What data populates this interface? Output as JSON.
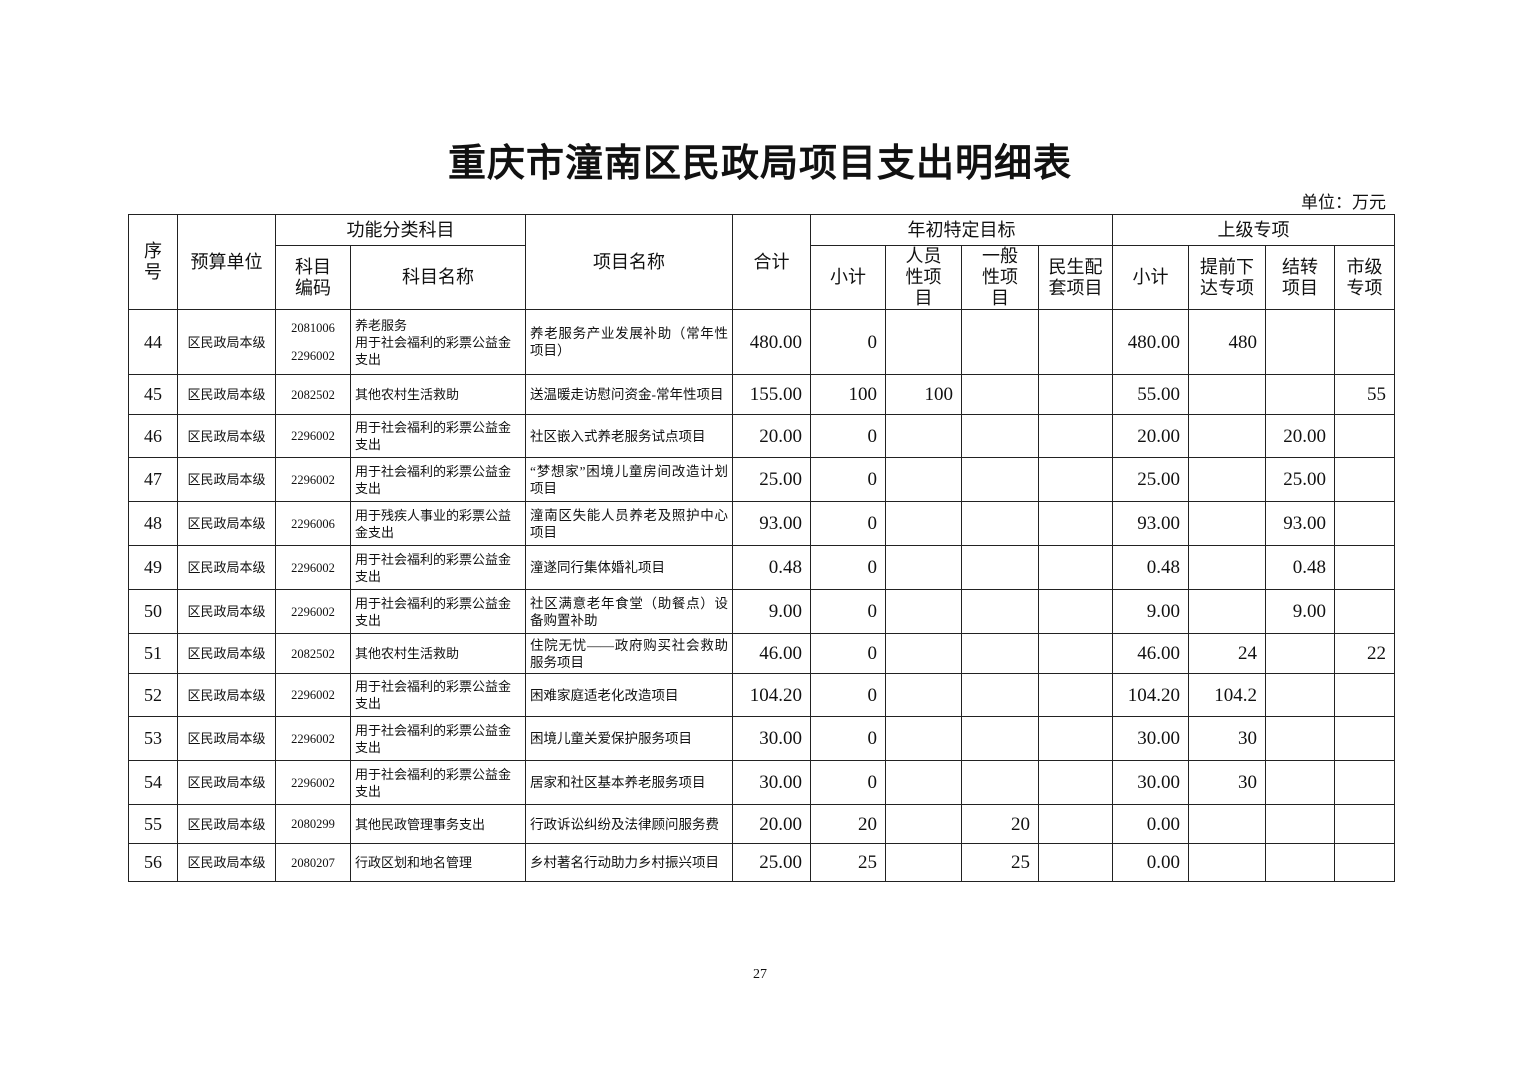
{
  "title": "重庆市潼南区民政局项目支出明细表",
  "unit": "单位：万元",
  "page_number": "27",
  "headers": {
    "seq": "序号",
    "unit": "预算单位",
    "func": "功能分类科目",
    "code": "科目编码",
    "subject": "科目名称",
    "project": "项目名称",
    "total": "合计",
    "annual": "年初特定目标",
    "a_sub": "小计",
    "a_person": "人员性项目",
    "a_general": "一般性项目",
    "a_livelihood": "民生配套项目",
    "upper": "上级专项",
    "u_sub": "小计",
    "u_advance": "提前下达专项",
    "u_carry": "结转项目",
    "u_city": "市级专项"
  },
  "rows": [
    [
      "44",
      "区民政局本级",
      "2081006\n2296002",
      "养老服务\n用于社会福利的彩票公益金支出",
      "养老服务产业发展补助（常年性项目）",
      "480.00",
      "0",
      "",
      "",
      "",
      "480.00",
      "480",
      "",
      ""
    ],
    [
      "45",
      "区民政局本级",
      "2082502",
      "其他农村生活救助",
      "送温暖走访慰问资金-常年性项目",
      "155.00",
      "100",
      "100",
      "",
      "",
      "55.00",
      "",
      "",
      "55"
    ],
    [
      "46",
      "区民政局本级",
      "2296002",
      "用于社会福利的彩票公益金支出",
      "社区嵌入式养老服务试点项目",
      "20.00",
      "0",
      "",
      "",
      "",
      "20.00",
      "",
      "20.00",
      ""
    ],
    [
      "47",
      "区民政局本级",
      "2296002",
      "用于社会福利的彩票公益金支出",
      "“梦想家”困境儿童房间改造计划项目",
      "25.00",
      "0",
      "",
      "",
      "",
      "25.00",
      "",
      "25.00",
      ""
    ],
    [
      "48",
      "区民政局本级",
      "2296006",
      "用于残疾人事业的彩票公益金支出",
      "潼南区失能人员养老及照护中心项目",
      "93.00",
      "0",
      "",
      "",
      "",
      "93.00",
      "",
      "93.00",
      ""
    ],
    [
      "49",
      "区民政局本级",
      "2296002",
      "用于社会福利的彩票公益金支出",
      "潼遂同行集体婚礼项目",
      "0.48",
      "0",
      "",
      "",
      "",
      "0.48",
      "",
      "0.48",
      ""
    ],
    [
      "50",
      "区民政局本级",
      "2296002",
      "用于社会福利的彩票公益金支出",
      "社区满意老年食堂（助餐点）设备购置补助",
      "9.00",
      "0",
      "",
      "",
      "",
      "9.00",
      "",
      "9.00",
      ""
    ],
    [
      "51",
      "区民政局本级",
      "2082502",
      "其他农村生活救助",
      "住院无忧——政府购买社会救助服务项目",
      "46.00",
      "0",
      "",
      "",
      "",
      "46.00",
      "24",
      "",
      "22"
    ],
    [
      "52",
      "区民政局本级",
      "2296002",
      "用于社会福利的彩票公益金支出",
      "困难家庭适老化改造项目",
      "104.20",
      "0",
      "",
      "",
      "",
      "104.20",
      "104.2",
      "",
      ""
    ],
    [
      "53",
      "区民政局本级",
      "2296002",
      "用于社会福利的彩票公益金支出",
      "困境儿童关爱保护服务项目",
      "30.00",
      "0",
      "",
      "",
      "",
      "30.00",
      "30",
      "",
      ""
    ],
    [
      "54",
      "区民政局本级",
      "2296002",
      "用于社会福利的彩票公益金支出",
      "居家和社区基本养老服务项目",
      "30.00",
      "0",
      "",
      "",
      "",
      "30.00",
      "30",
      "",
      ""
    ],
    [
      "55",
      "区民政局本级",
      "2080299",
      "其他民政管理事务支出",
      "行政诉讼纠纷及法律顾问服务费",
      "20.00",
      "20",
      "",
      "20",
      "",
      "0.00",
      "",
      "",
      ""
    ],
    [
      "56",
      "区民政局本级",
      "2080207",
      "行政区划和地名管理",
      "乡村著名行动助力乡村振兴项目",
      "25.00",
      "25",
      "",
      "25",
      "",
      "0.00",
      "",
      "",
      ""
    ]
  ]
}
